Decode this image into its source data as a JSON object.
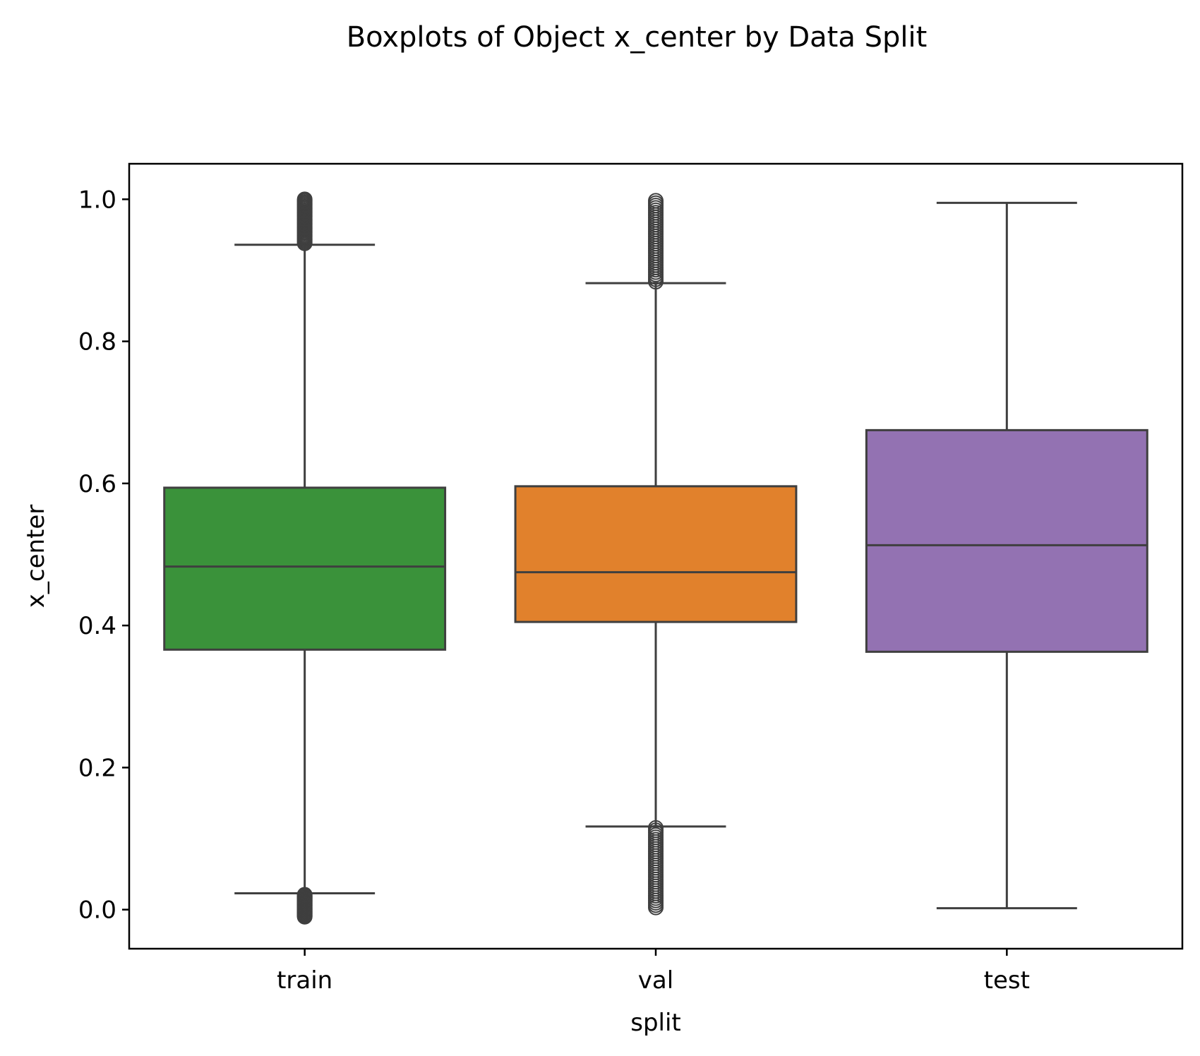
{
  "chart_data": {
    "type": "boxplot",
    "title": "Boxplots of Object x_center by Data Split",
    "xlabel": "split",
    "ylabel": "x_center",
    "ylim": [
      -0.055,
      1.05
    ],
    "yticks": [
      "0.0",
      "0.2",
      "0.4",
      "0.6",
      "0.8",
      "1.0"
    ],
    "grid": false,
    "categories": [
      "train",
      "val",
      "test"
    ],
    "boxes": [
      {
        "category": "train",
        "color": "#3a923a",
        "q1": 0.366,
        "median": 0.483,
        "q3": 0.594,
        "whisker_low": 0.023,
        "whisker_high": 0.936,
        "outliers_high_range": [
          0.938,
          1.0
        ],
        "outliers_low_range": [
          -0.01,
          0.021
        ]
      },
      {
        "category": "val",
        "color": "#e1812c",
        "q1": 0.405,
        "median": 0.475,
        "q3": 0.596,
        "whisker_low": 0.117,
        "whisker_high": 0.882,
        "outliers_high_range": [
          0.884,
          0.998
        ],
        "outliers_low_range": [
          0.003,
          0.115
        ]
      },
      {
        "category": "test",
        "color": "#9372b2",
        "q1": 0.363,
        "median": 0.513,
        "q3": 0.675,
        "whisker_low": 0.002,
        "whisker_high": 0.995,
        "outliers_high_range": null,
        "outliers_low_range": null
      }
    ],
    "line_color": "#3f3f3f"
  }
}
